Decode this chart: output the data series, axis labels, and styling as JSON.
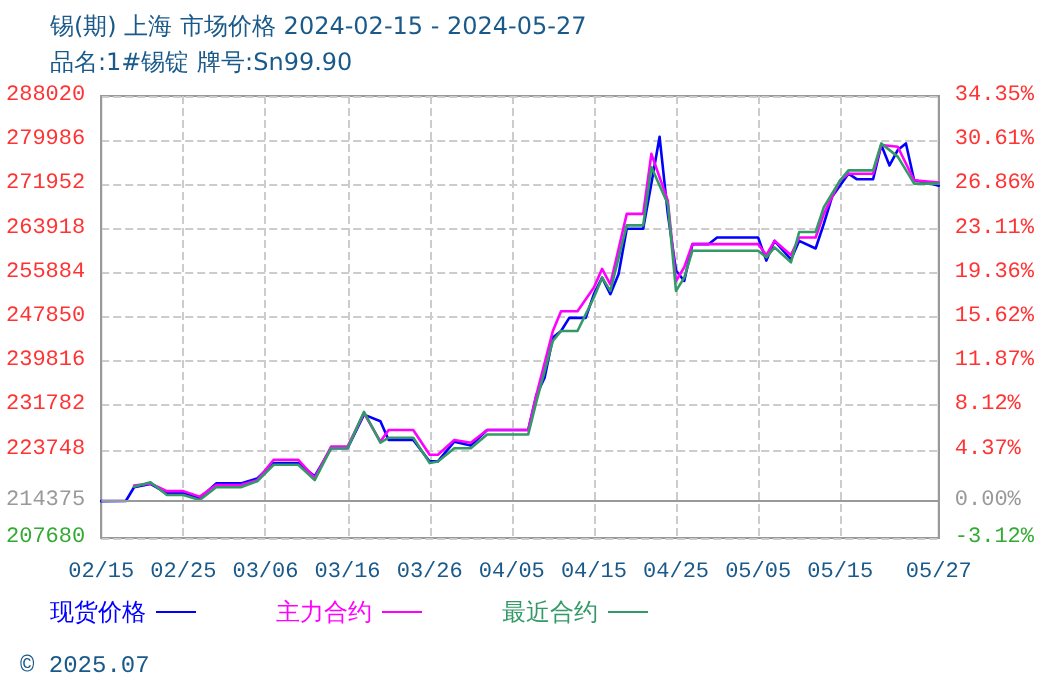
{
  "chart_data": {
    "type": "line",
    "title": "锡(期) 上海 市场价格 2024-02-15 - 2024-05-27",
    "subtitle": "品名:1#锡锭 牌号:Sn99.90",
    "xlim": [
      "2024-02-15",
      "2024-05-27"
    ],
    "xticks": [
      {
        "value": "2024-02-15",
        "label": "02/15"
      },
      {
        "value": "2024-02-25",
        "label": "02/25"
      },
      {
        "value": "2024-03-06",
        "label": "03/06"
      },
      {
        "value": "2024-03-16",
        "label": "03/16"
      },
      {
        "value": "2024-03-26",
        "label": "03/26"
      },
      {
        "value": "2024-04-05",
        "label": "04/05"
      },
      {
        "value": "2024-04-15",
        "label": "04/15"
      },
      {
        "value": "2024-04-25",
        "label": "04/25"
      },
      {
        "value": "2024-05-05",
        "label": "05/05"
      },
      {
        "value": "2024-05-15",
        "label": "05/15"
      },
      {
        "value": "2024-05-27",
        "label": "05/27"
      }
    ],
    "ylim": [
      207680,
      288020
    ],
    "yticks": [
      207680,
      214375,
      223748,
      231782,
      239816,
      247850,
      255884,
      263918,
      271952,
      279986,
      288020
    ],
    "y2lim": [
      -3.12,
      34.35
    ],
    "y2ticks": [
      {
        "value": -3.12,
        "label": "-3.12%"
      },
      {
        "value": 0,
        "label": "0.00%"
      },
      {
        "value": 4.37,
        "label": "4.37%"
      },
      {
        "value": 8.12,
        "label": "8.12%"
      },
      {
        "value": 11.87,
        "label": "11.87%"
      },
      {
        "value": 15.62,
        "label": "15.62%"
      },
      {
        "value": 19.36,
        "label": "19.36%"
      },
      {
        "value": 23.11,
        "label": "23.11%"
      },
      {
        "value": 26.86,
        "label": "26.86%"
      },
      {
        "value": 30.61,
        "label": "30.61%"
      },
      {
        "value": 34.35,
        "label": "34.35%"
      }
    ],
    "ref_lines": [
      {
        "axis": "y",
        "value": 214375,
        "color": "#999999"
      }
    ],
    "grid": true,
    "legend": "bottom",
    "marker": "none",
    "line_style": "solid",
    "annotations": [
      "© 2025.07"
    ],
    "series": [
      {
        "name": "现货价格",
        "color": "#0000ff",
        "x": [
          "2024-02-15",
          "2024-02-18",
          "2024-02-19",
          "2024-02-21",
          "2024-02-23",
          "2024-02-25",
          "2024-02-27",
          "2024-02-29",
          "2024-03-03",
          "2024-03-05",
          "2024-03-07",
          "2024-03-10",
          "2024-03-12",
          "2024-03-14",
          "2024-03-16",
          "2024-03-18",
          "2024-03-20",
          "2024-03-21",
          "2024-03-24",
          "2024-03-26",
          "2024-03-27",
          "2024-03-29",
          "2024-03-31",
          "2024-04-02",
          "2024-04-07",
          "2024-04-08",
          "2024-04-09",
          "2024-04-10",
          "2024-04-11",
          "2024-04-12",
          "2024-04-14",
          "2024-04-15",
          "2024-04-16",
          "2024-04-17",
          "2024-04-18",
          "2024-04-19",
          "2024-04-21",
          "2024-04-22",
          "2024-04-23",
          "2024-04-24",
          "2024-04-25",
          "2024-04-26",
          "2024-04-27",
          "2024-04-29",
          "2024-04-30",
          "2024-05-05",
          "2024-05-06",
          "2024-05-07",
          "2024-05-09",
          "2024-05-10",
          "2024-05-12",
          "2024-05-13",
          "2024-05-14",
          "2024-05-16",
          "2024-05-17",
          "2024-05-19",
          "2024-05-20",
          "2024-05-21",
          "2024-05-22",
          "2024-05-23",
          "2024-05-24",
          "2024-05-26",
          "2024-05-27"
        ],
        "values": [
          214375,
          214400,
          216900,
          217500,
          215800,
          215800,
          214900,
          217600,
          217600,
          218500,
          221300,
          221300,
          218900,
          224000,
          224000,
          230100,
          228900,
          225500,
          225500,
          221600,
          221600,
          225200,
          224500,
          227300,
          227300,
          233700,
          236800,
          244100,
          245300,
          247700,
          247700,
          252000,
          255000,
          252000,
          255600,
          263900,
          263900,
          272100,
          280600,
          266600,
          256300,
          254400,
          261100,
          261100,
          262300,
          262300,
          258100,
          261700,
          258300,
          261700,
          260300,
          264800,
          269700,
          273900,
          272900,
          272900,
          279100,
          275400,
          278200,
          279400,
          272700,
          272100,
          271700
        ]
      },
      {
        "name": "主力合约",
        "color": "#ff00ff",
        "x": [
          "2024-02-19",
          "2024-02-21",
          "2024-02-23",
          "2024-02-25",
          "2024-02-27",
          "2024-02-29",
          "2024-03-03",
          "2024-03-05",
          "2024-03-07",
          "2024-03-10",
          "2024-03-12",
          "2024-03-14",
          "2024-03-16",
          "2024-03-18",
          "2024-03-20",
          "2024-03-21",
          "2024-03-24",
          "2024-03-26",
          "2024-03-27",
          "2024-03-29",
          "2024-03-31",
          "2024-04-02",
          "2024-04-07",
          "2024-04-08",
          "2024-04-10",
          "2024-04-11",
          "2024-04-13",
          "2024-04-15",
          "2024-04-16",
          "2024-04-17",
          "2024-04-19",
          "2024-04-21",
          "2024-04-22",
          "2024-04-24",
          "2024-04-25",
          "2024-04-26",
          "2024-04-27",
          "2024-05-05",
          "2024-05-06",
          "2024-05-07",
          "2024-05-09",
          "2024-05-10",
          "2024-05-12",
          "2024-05-13",
          "2024-05-15",
          "2024-05-16",
          "2024-05-19",
          "2024-05-20",
          "2024-05-22",
          "2024-05-24",
          "2024-05-27"
        ],
        "values": [
          217200,
          217600,
          216200,
          216200,
          215200,
          217300,
          217300,
          218200,
          221900,
          221900,
          218600,
          224300,
          224300,
          230400,
          225200,
          227300,
          227300,
          222800,
          222800,
          225500,
          225000,
          227300,
          227300,
          233700,
          245300,
          248900,
          248900,
          253200,
          256600,
          253800,
          266600,
          266600,
          277500,
          269000,
          254400,
          256900,
          261100,
          261100,
          259100,
          261700,
          259100,
          262300,
          262300,
          266600,
          272700,
          273900,
          273900,
          279100,
          278800,
          272700,
          272300
        ]
      },
      {
        "name": "最近合约",
        "color": "#339966",
        "x": [
          "2024-02-19",
          "2024-02-21",
          "2024-02-23",
          "2024-02-25",
          "2024-02-27",
          "2024-02-29",
          "2024-03-03",
          "2024-03-05",
          "2024-03-07",
          "2024-03-10",
          "2024-03-12",
          "2024-03-14",
          "2024-03-16",
          "2024-03-18",
          "2024-03-20",
          "2024-03-21",
          "2024-03-24",
          "2024-03-26",
          "2024-03-27",
          "2024-03-29",
          "2024-03-31",
          "2024-04-02",
          "2024-04-07",
          "2024-04-08",
          "2024-04-10",
          "2024-04-11",
          "2024-04-13",
          "2024-04-15",
          "2024-04-16",
          "2024-04-17",
          "2024-04-19",
          "2024-04-21",
          "2024-04-22",
          "2024-04-24",
          "2024-04-25",
          "2024-04-26",
          "2024-04-27",
          "2024-05-05",
          "2024-05-06",
          "2024-05-07",
          "2024-05-09",
          "2024-05-10",
          "2024-05-12",
          "2024-05-13",
          "2024-05-15",
          "2024-05-16",
          "2024-05-19",
          "2024-05-20",
          "2024-05-22",
          "2024-05-24",
          "2024-05-27"
        ],
        "values": [
          217000,
          217800,
          215500,
          215500,
          214600,
          216900,
          216900,
          218000,
          221000,
          221000,
          218200,
          224000,
          224000,
          230600,
          225000,
          225900,
          225900,
          221300,
          221600,
          224000,
          224000,
          226500,
          226500,
          232500,
          243500,
          245300,
          245300,
          251400,
          255000,
          252600,
          264500,
          264500,
          275100,
          268400,
          252600,
          255000,
          259900,
          259900,
          258700,
          260500,
          257800,
          263300,
          263300,
          267800,
          272700,
          274500,
          274500,
          279400,
          277000,
          272100,
          272100
        ]
      }
    ]
  }
}
